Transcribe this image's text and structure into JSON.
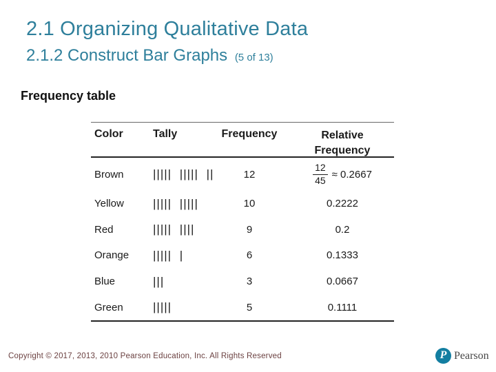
{
  "slide": {
    "title": "2.1 Organizing Qualitative Data",
    "subtitle": "2.1.2 Construct Bar Graphs",
    "subtitle_suffix": "(5 of 13)",
    "section_label": "Frequency table"
  },
  "colors": {
    "heading_teal": "#2E7F9B",
    "table_text": "#1a1a1a",
    "copyright_text": "#6b4141",
    "pearson_logo_teal": "#137EA1"
  },
  "table": {
    "headers": {
      "color": "Color",
      "tally": "Tally",
      "frequency": "Frequency",
      "relative_line1": "Relative",
      "relative_line2": "Frequency"
    },
    "rows": [
      {
        "color": "Brown",
        "tally": "||||| |||||  ||",
        "frequency": "12",
        "rel_numerator": "12",
        "rel_denominator": "45",
        "rel_approx": "≈ 0.2667"
      },
      {
        "color": "Yellow",
        "tally": "||||| |||||",
        "frequency": "10",
        "relative": "0.2222"
      },
      {
        "color": "Red",
        "tally": "||||| ||||",
        "frequency": "9",
        "relative": "0.2"
      },
      {
        "color": "Orange",
        "tally": "||||| |",
        "frequency": "6",
        "relative": "0.1333"
      },
      {
        "color": "Blue",
        "tally": "|||",
        "frequency": "3",
        "relative": "0.0667"
      },
      {
        "color": "Green",
        "tally": "|||||",
        "frequency": "5",
        "relative": "0.1111"
      }
    ],
    "total_frequency": "45"
  },
  "footer": {
    "copyright": "Copyright © 2017, 2013, 2010 Pearson Education, Inc. All Rights Reserved",
    "logo_letter": "P",
    "logo_text": "Pearson"
  }
}
